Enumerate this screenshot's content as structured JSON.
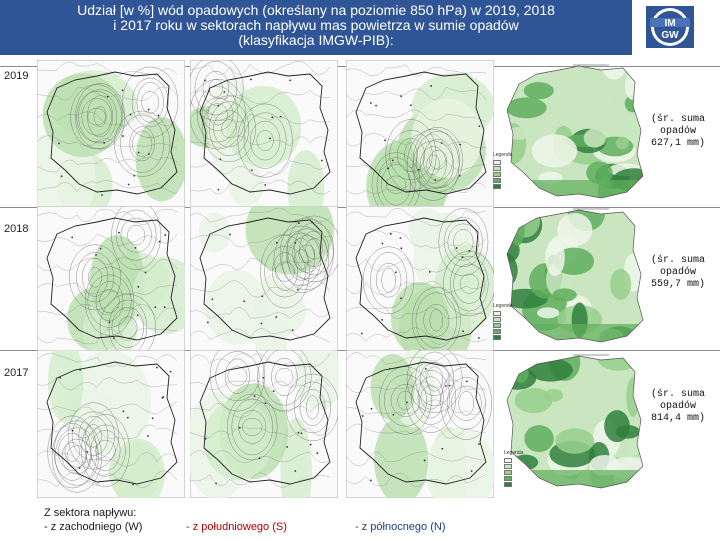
{
  "title": {
    "line1": "Udział [w %] wód opadowych (określany na poziomie 850 hPa) w 2019, 2018",
    "line2": "i 2017 roku w sektorach napływu mas powietrza w sumie opadów",
    "line3": "(klasyfikacja IMGW-PIB):"
  },
  "logo": {
    "text_top": "IM",
    "text_bottom": "GW"
  },
  "rows": [
    {
      "year": "2019",
      "sum_line1": "(śr. suma",
      "sum_line2": "opadów",
      "sum_line3": "627,1 mm)"
    },
    {
      "year": "2018",
      "sum_line1": "(śr. suma",
      "sum_line2": "opadów",
      "sum_line3": "559,7 mm)"
    },
    {
      "year": "2017",
      "sum_line1": "(śr. suma",
      "sum_line2": "opadów",
      "sum_line3": "814,4 mm)"
    }
  ],
  "legend": {
    "title": "Legenda",
    "swatch_colors": [
      "#eef6ea",
      "#c9e6c0",
      "#98cf8c",
      "#5fae5d",
      "#2f7f3c"
    ]
  },
  "footer": {
    "heading": "Z sektora napływu:",
    "west": "- z zachodniego (W)",
    "south": "- z południowego (S)",
    "north": "- z północnego (N)"
  },
  "colors": {
    "title_bg": "#2f5597",
    "south_text": "#b00000",
    "north_text": "#1f3f85"
  }
}
